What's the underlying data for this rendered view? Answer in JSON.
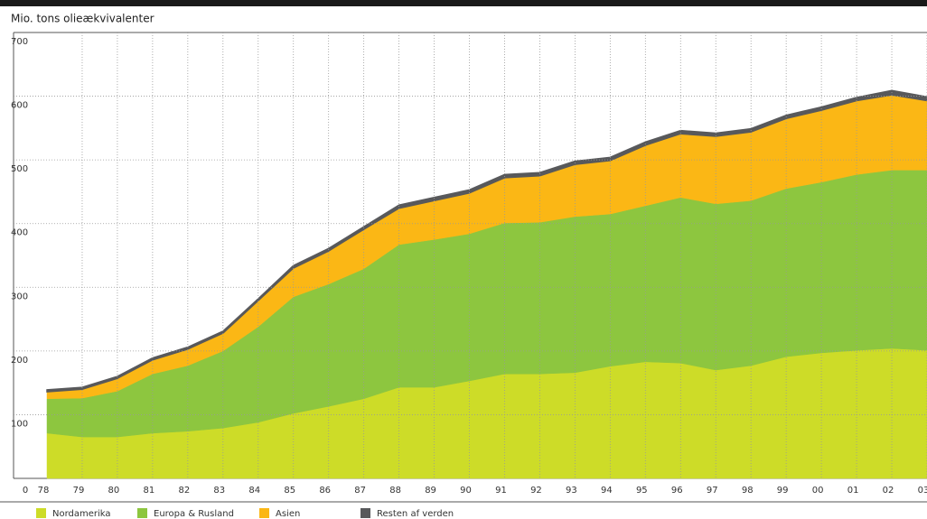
{
  "chart_data": {
    "type": "area",
    "stacked": true,
    "title": "Mio. tons olieækvivalenter",
    "categories": [
      "78",
      "79",
      "80",
      "81",
      "82",
      "83",
      "84",
      "85",
      "86",
      "87",
      "88",
      "89",
      "90",
      "91",
      "92",
      "93",
      "94",
      "95",
      "96",
      "97",
      "98",
      "99",
      "00",
      "01",
      "02",
      "03"
    ],
    "series": [
      {
        "name": "Nordamerika",
        "color": "#cddc28",
        "values": [
          71,
          65,
          65,
          71,
          74,
          79,
          88,
          102,
          113,
          125,
          143,
          143,
          153,
          164,
          164,
          166,
          176,
          183,
          181,
          170,
          177,
          191,
          197,
          201,
          204,
          201
        ]
      },
      {
        "name": "Europa & Rusland",
        "color": "#8dc63f",
        "values": [
          54,
          61,
          72,
          93,
          103,
          121,
          150,
          183,
          192,
          204,
          224,
          232,
          231,
          237,
          238,
          245,
          239,
          245,
          260,
          261,
          259,
          264,
          268,
          276,
          280,
          283
        ]
      },
      {
        "name": "Asien",
        "color": "#fbb715",
        "values": [
          11,
          14,
          20,
          22,
          26,
          28,
          41,
          45,
          52,
          62,
          57,
          61,
          64,
          71,
          73,
          82,
          84,
          95,
          100,
          106,
          108,
          110,
          113,
          116,
          118,
          109
        ]
      },
      {
        "name": "Resten af verden",
        "color": "#58595b",
        "values": [
          3,
          3,
          3,
          3,
          3,
          3,
          3,
          4,
          4,
          4,
          5,
          5,
          5,
          5,
          5,
          5,
          5,
          5,
          5,
          5,
          5,
          5,
          5,
          5,
          7,
          6
        ]
      }
    ],
    "ylim": [
      0,
      700
    ],
    "yticks": [
      0,
      100,
      200,
      300,
      400,
      500,
      600,
      700
    ],
    "grid": true
  }
}
